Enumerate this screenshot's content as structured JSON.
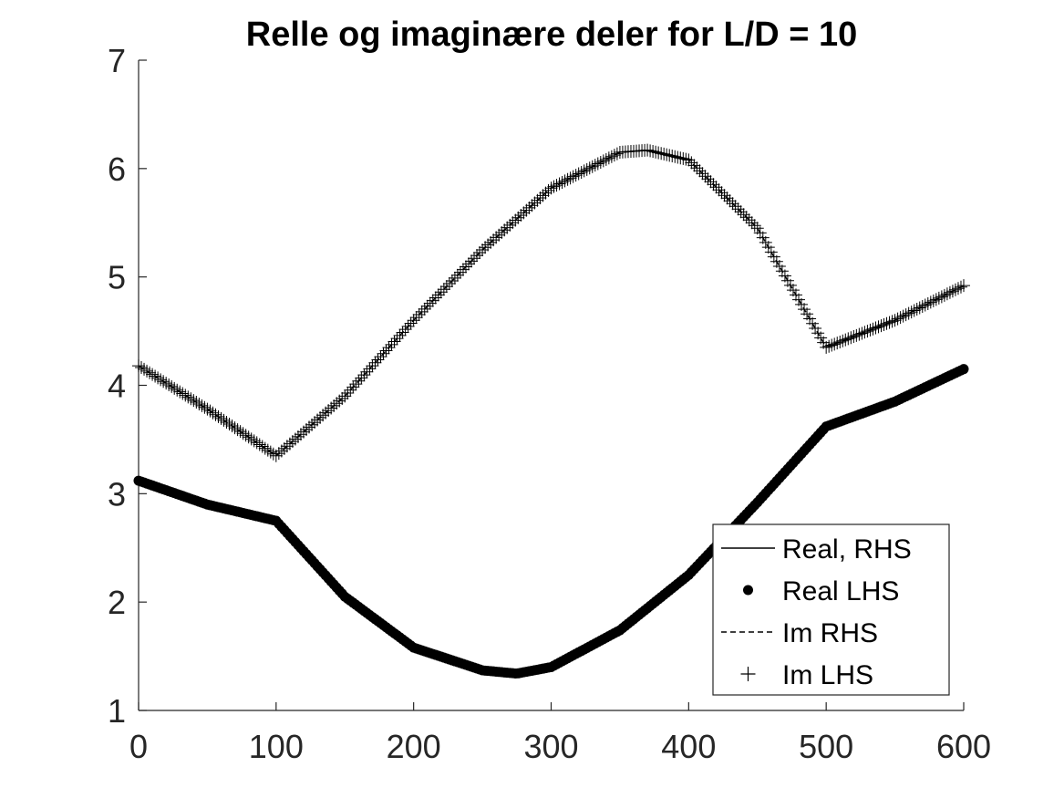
{
  "chart_data": {
    "type": "line",
    "title": "Relle og imaginære deler for L/D = 10",
    "xlabel": "",
    "ylabel": "",
    "xlim": [
      0,
      600
    ],
    "ylim": [
      1,
      7
    ],
    "xticks": [
      "0",
      "100",
      "200",
      "300",
      "400",
      "500",
      "600"
    ],
    "yticks": [
      "1",
      "2",
      "3",
      "4",
      "5",
      "6",
      "7"
    ],
    "grid": false,
    "legend_position": "bottom-right",
    "series": [
      {
        "name": "Real, RHS",
        "style": "solid line",
        "x": [
          0,
          50,
          100,
          150,
          200,
          250,
          275,
          300,
          350,
          400,
          450,
          500,
          550,
          600
        ],
        "y": [
          3.12,
          2.9,
          2.75,
          2.05,
          1.58,
          1.37,
          1.34,
          1.4,
          1.74,
          2.25,
          2.92,
          3.62,
          3.85,
          4.15
        ]
      },
      {
        "name": "Real LHS",
        "style": "dot markers",
        "x": [
          0,
          50,
          100,
          150,
          200,
          250,
          275,
          300,
          350,
          400,
          450,
          500,
          550,
          600
        ],
        "y": [
          3.12,
          2.9,
          2.75,
          2.05,
          1.58,
          1.37,
          1.34,
          1.4,
          1.74,
          2.25,
          2.92,
          3.62,
          3.85,
          4.15
        ]
      },
      {
        "name": "Im RHS",
        "style": "dashed line",
        "x": [
          0,
          50,
          100,
          150,
          200,
          250,
          300,
          350,
          370,
          400,
          450,
          500,
          550,
          600
        ],
        "y": [
          4.18,
          3.78,
          3.35,
          3.9,
          4.6,
          5.25,
          5.82,
          6.15,
          6.17,
          6.08,
          5.45,
          4.35,
          4.6,
          4.92
        ]
      },
      {
        "name": "Im LHS",
        "style": "plus markers",
        "x": [
          0,
          50,
          100,
          150,
          200,
          250,
          300,
          350,
          370,
          400,
          450,
          500,
          550,
          600
        ],
        "y": [
          4.18,
          3.78,
          3.35,
          3.9,
          4.6,
          5.25,
          5.82,
          6.15,
          6.17,
          6.08,
          5.45,
          4.35,
          4.6,
          4.92
        ]
      }
    ]
  }
}
